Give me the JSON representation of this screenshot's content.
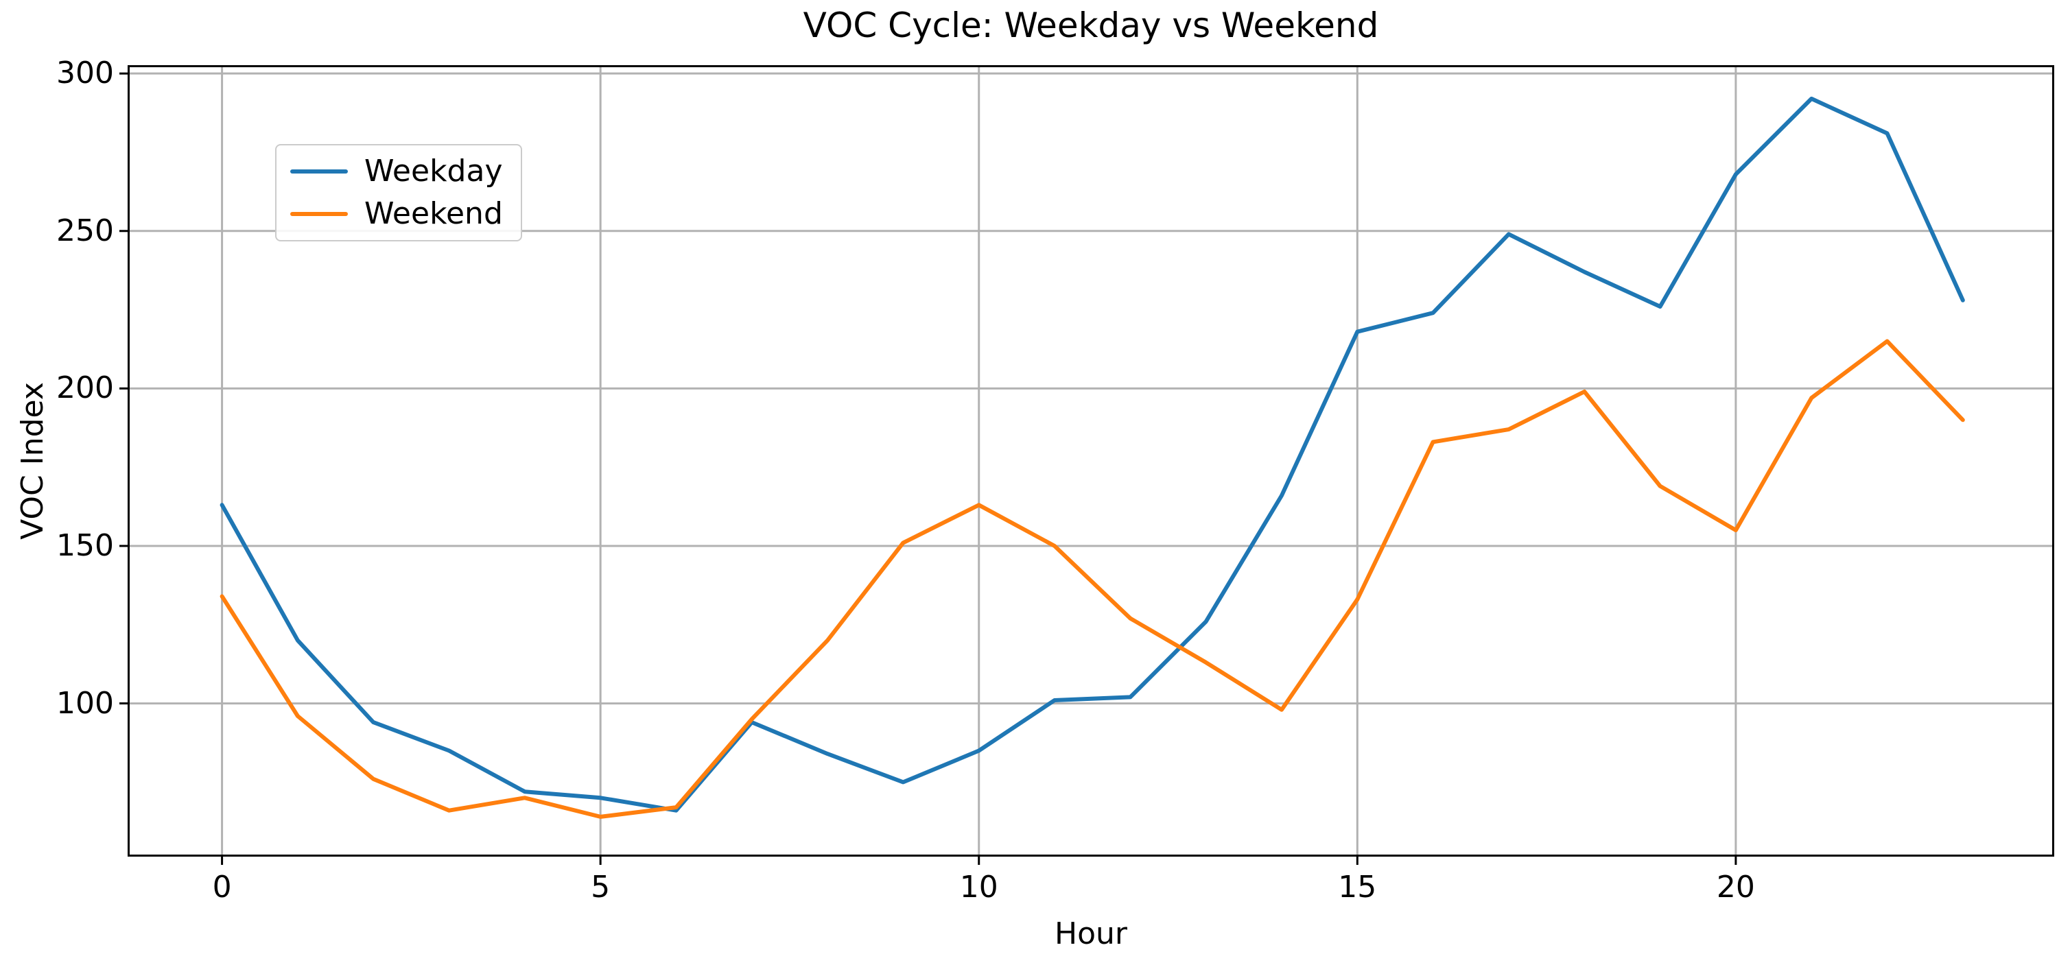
{
  "page": {
    "background": "#ffffff"
  },
  "colors": {
    "weekday": "#1f77b4",
    "weekend": "#ff7f0e",
    "grid": "#b2b2b2",
    "spine": "#000000",
    "legend_border": "#cbcbcb"
  },
  "chart_data": {
    "type": "line",
    "title": "VOC Cycle: Weekday vs Weekend",
    "xlabel": "Hour",
    "ylabel": "VOC Index",
    "x": [
      0,
      1,
      2,
      3,
      4,
      5,
      6,
      7,
      8,
      9,
      10,
      11,
      12,
      13,
      14,
      15,
      16,
      17,
      18,
      19,
      20,
      21,
      22,
      23
    ],
    "series": [
      {
        "name": "Weekday",
        "color": "#1f77b4",
        "values": [
          163,
          120,
          94,
          85,
          72,
          70,
          66,
          94,
          84,
          75,
          85,
          101,
          102,
          126,
          166,
          218,
          224,
          249,
          237,
          226,
          268,
          292,
          281,
          228
        ]
      },
      {
        "name": "Weekend",
        "color": "#ff7f0e",
        "values": [
          134,
          96,
          76,
          66,
          70,
          64,
          67,
          95,
          120,
          151,
          163,
          150,
          127,
          113,
          98,
          133,
          183,
          187,
          199,
          169,
          155,
          197,
          215,
          190
        ]
      }
    ],
    "xticks": [
      0,
      5,
      10,
      15,
      20
    ],
    "yticks": [
      100,
      150,
      200,
      250,
      300
    ],
    "xlim": [
      -1.22,
      24.18
    ],
    "ylim": [
      52,
      302
    ],
    "grid": true,
    "legend_position": "upper-left",
    "legend_labels": [
      "Weekday",
      "Weekend"
    ]
  }
}
